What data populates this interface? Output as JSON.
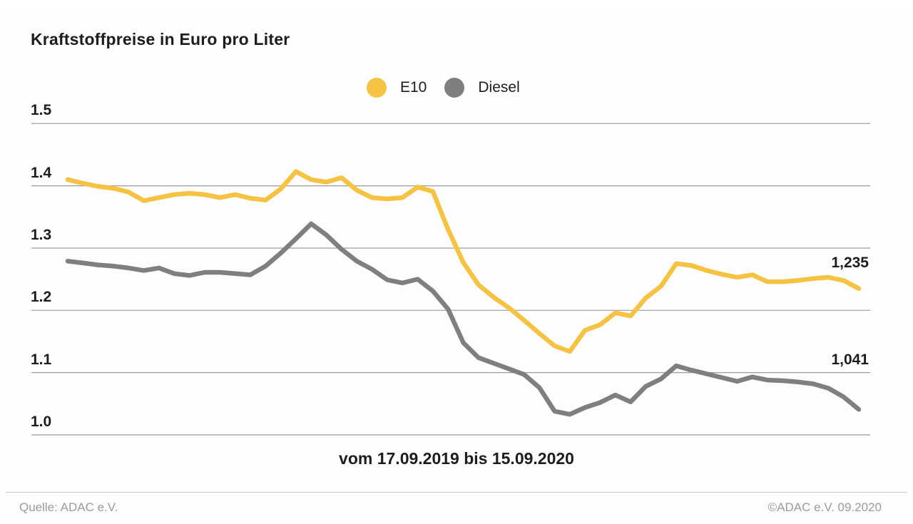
{
  "title": "Kraftstoffpreise in Euro pro Liter",
  "footer": {
    "source": "Quelle: ADAC e.V.",
    "copyright": "©ADAC e.V. 09.2020"
  },
  "colors": {
    "e10": "#F6C242",
    "diesel": "#7F7F7F",
    "gridline": "#9c9c9c",
    "text": "#1d1d1b",
    "footer_text": "#9b9b9b"
  },
  "chart_data": {
    "type": "line",
    "title": "Kraftstoffpreise in Euro pro Liter",
    "xlabel": "vom 17.09.2019 bis 15.09.2020",
    "x_range": {
      "from": "17.09.2019",
      "to": "15.09.2020",
      "interval": "weekly",
      "points": 53
    },
    "ylabel": "Euro pro Liter",
    "ylim": [
      1.0,
      1.5
    ],
    "yticks": [
      "1.5",
      "1.4",
      "1.3",
      "1.2",
      "1.1",
      "1.0"
    ],
    "grid": true,
    "legend_position": "top-center",
    "series": [
      {
        "name": "E10",
        "color": "#F6C242",
        "end_label": "1,235",
        "final_value": 1.235,
        "values": [
          1.41,
          1.404,
          1.399,
          1.396,
          1.39,
          1.376,
          1.381,
          1.386,
          1.388,
          1.386,
          1.381,
          1.386,
          1.38,
          1.377,
          1.395,
          1.423,
          1.41,
          1.406,
          1.413,
          1.393,
          1.381,
          1.379,
          1.381,
          1.398,
          1.391,
          1.33,
          1.277,
          1.241,
          1.221,
          1.204,
          1.184,
          1.163,
          1.143,
          1.134,
          1.168,
          1.177,
          1.196,
          1.191,
          1.22,
          1.239,
          1.275,
          1.272,
          1.264,
          1.258,
          1.253,
          1.257,
          1.246,
          1.246,
          1.248,
          1.251,
          1.253,
          1.248,
          1.235
        ]
      },
      {
        "name": "Diesel",
        "color": "#7F7F7F",
        "end_label": "1,041",
        "final_value": 1.041,
        "values": [
          1.279,
          1.276,
          1.273,
          1.271,
          1.268,
          1.264,
          1.268,
          1.259,
          1.256,
          1.261,
          1.261,
          1.259,
          1.257,
          1.271,
          1.292,
          1.315,
          1.339,
          1.321,
          1.298,
          1.279,
          1.266,
          1.249,
          1.244,
          1.25,
          1.231,
          1.202,
          1.148,
          1.124,
          1.115,
          1.106,
          1.097,
          1.076,
          1.038,
          1.033,
          1.044,
          1.052,
          1.064,
          1.053,
          1.078,
          1.09,
          1.111,
          1.104,
          1.098,
          1.092,
          1.086,
          1.093,
          1.088,
          1.087,
          1.085,
          1.082,
          1.075,
          1.061,
          1.041
        ]
      }
    ]
  }
}
